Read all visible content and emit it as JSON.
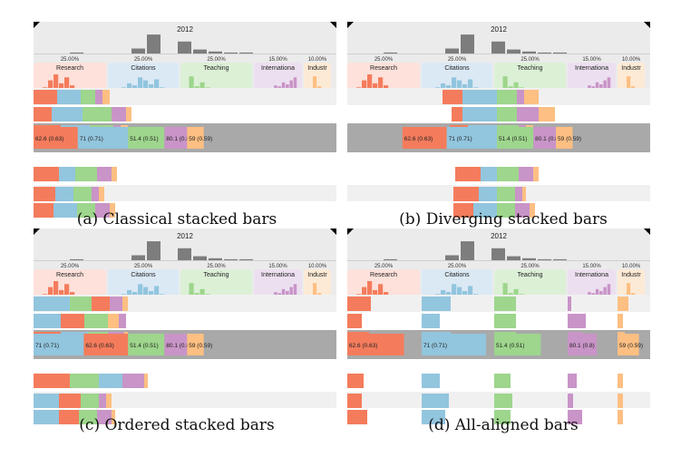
{
  "colors": {
    "research": "#f47c5c",
    "citations": "#92c5de",
    "teaching": "#9dd68c",
    "international": "#c994c7",
    "industry": "#fdbf82",
    "research_bg": "#fde1da",
    "citations_bg": "#dbe9f5",
    "teaching_bg": "#dcf0d6",
    "international_bg": "#ece0f0",
    "industry_bg": "#fdead5",
    "header_bg": "#ebebeb",
    "highlight_row": "#a9a9a9",
    "alt_row": "#f0f0f0",
    "hist_bar": "#7d7d7d"
  },
  "year_label": "2012",
  "year_histogram": [
    0.05,
    0.0,
    0.0,
    0.0,
    0.25,
    0.95,
    0.0,
    0.6,
    0.2,
    0.1,
    0.05,
    0.05
  ],
  "columns": [
    {
      "key": "research",
      "label": "Research",
      "weight": "25.00%",
      "hist": [
        0.35,
        0.7,
        1.0,
        0.55,
        0.85,
        0.45,
        0.3,
        0.2,
        0.1,
        0.05
      ]
    },
    {
      "key": "citations",
      "label": "Citations",
      "weight": "25.00%",
      "hist": [
        0.2,
        0.35,
        0.55,
        0.45,
        0.85,
        0.7,
        0.5,
        0.75,
        0.35,
        0.2
      ]
    },
    {
      "key": "teaching",
      "label": "Teaching",
      "weight": "25.00%",
      "hist": [
        0.9,
        0.4,
        0.6,
        0.35,
        0.3,
        0.2,
        0.15,
        0.1,
        0.08,
        0.05
      ]
    },
    {
      "key": "international",
      "label": "Internationa",
      "weight": "15.00%",
      "hist": [
        0.1,
        0.15,
        0.3,
        0.25,
        0.45,
        0.4,
        0.6,
        0.5,
        0.7,
        0.85
      ]
    },
    {
      "key": "industry",
      "label": "Industr",
      "weight": "10.00%",
      "hist": [
        0.3,
        0.9,
        0.4,
        0.15
      ]
    }
  ],
  "highlight_labels": [
    "62.6 (0.63)",
    "71 (0.71)",
    "51.4 (0.51)",
    "80.1 (0.8)",
    "59 (0.59)"
  ],
  "panels": [
    {
      "id": "a",
      "caption": "(a)  Classical stacked bars",
      "mode": "classical",
      "rows": [
        [
          13,
          13,
          8,
          4,
          4
        ],
        [
          10,
          17,
          16,
          8,
          3
        ],
        [
          15,
          16,
          13,
          4,
          4
        ],
        [
          14,
          9,
          12,
          8,
          3
        ],
        [
          12,
          10,
          10,
          4,
          3
        ],
        [
          11,
          13,
          10,
          8,
          3
        ]
      ]
    },
    {
      "id": "b",
      "caption": "(b)  Diverging stacked bars",
      "mode": "diverging",
      "rows": [
        [
          11,
          19,
          11,
          4,
          8
        ],
        [
          6,
          19,
          11,
          12,
          9
        ],
        [
          10,
          16,
          12,
          4,
          4
        ],
        [
          14,
          9,
          12,
          8,
          3
        ],
        [
          14,
          10,
          10,
          4,
          2
        ],
        [
          11,
          13,
          10,
          8,
          3
        ]
      ]
    },
    {
      "id": "c",
      "caption": "(c)  Ordered stacked bars",
      "mode": "ordered",
      "rows": [
        [
          10,
          20,
          12,
          7,
          3
        ],
        [
          13,
          15,
          13,
          4,
          6
        ],
        [
          15,
          15,
          11,
          9,
          2
        ],
        [
          20,
          13,
          16,
          12,
          2
        ],
        [
          12,
          14,
          10,
          4,
          3
        ],
        [
          11,
          14,
          10,
          8,
          2
        ]
      ]
    },
    {
      "id": "d",
      "caption": "(d)  All-aligned bars",
      "mode": "aligned",
      "rows": [
        [
          13,
          16,
          12,
          2,
          6
        ],
        [
          8,
          10,
          12,
          10,
          3
        ],
        [
          12,
          16,
          12,
          8,
          4
        ],
        [
          9,
          10,
          9,
          5,
          3
        ],
        [
          8,
          15,
          10,
          3,
          3
        ],
        [
          11,
          13,
          9,
          8,
          3
        ]
      ]
    }
  ]
}
